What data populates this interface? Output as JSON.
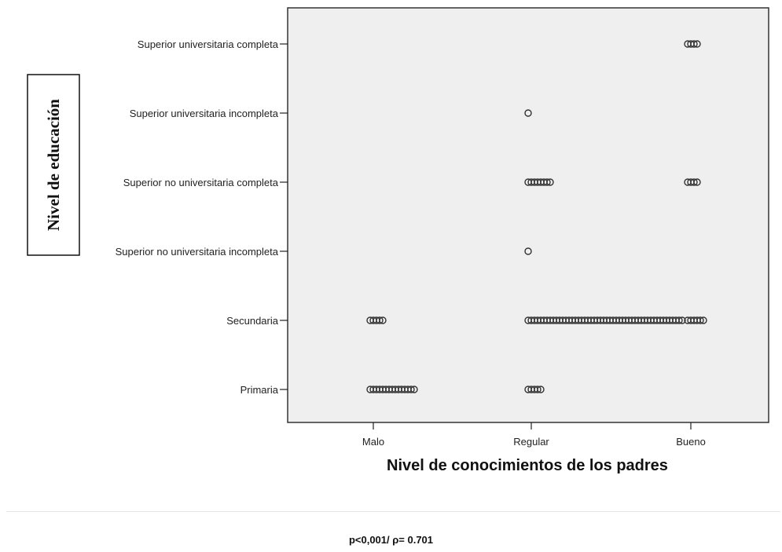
{
  "chart_data": {
    "type": "scatter",
    "xlabel": "Nivel de conocimientos de los padres",
    "ylabel": "Nivel de educación",
    "x_categories": [
      "Malo",
      "Regular",
      "Bueno"
    ],
    "y_categories": [
      "Primaria",
      "Secundaria",
      "Superior no universitaria incompleta",
      "Superior no universitaria completa",
      "Superior universitaria incompleta",
      "Superior universitaria completa"
    ],
    "grid": false,
    "points": [
      {
        "x": "Malo",
        "y": "Primaria",
        "n": 15
      },
      {
        "x": "Malo",
        "y": "Secundaria",
        "n": 5
      },
      {
        "x": "Regular",
        "y": "Primaria",
        "n": 5
      },
      {
        "x": "Regular",
        "y": "Secundaria",
        "n": 50
      },
      {
        "x": "Regular",
        "y": "Superior no universitaria incompleta",
        "n": 1
      },
      {
        "x": "Regular",
        "y": "Superior no universitaria completa",
        "n": 8
      },
      {
        "x": "Regular",
        "y": "Superior universitaria incompleta",
        "n": 1
      },
      {
        "x": "Bueno",
        "y": "Secundaria",
        "n": 6
      },
      {
        "x": "Bueno",
        "y": "Superior no universitaria completa",
        "n": 4
      },
      {
        "x": "Bueno",
        "y": "Superior universitaria completa",
        "n": 4
      }
    ]
  },
  "footnote": "p<0,001/ ρ= 0.701"
}
